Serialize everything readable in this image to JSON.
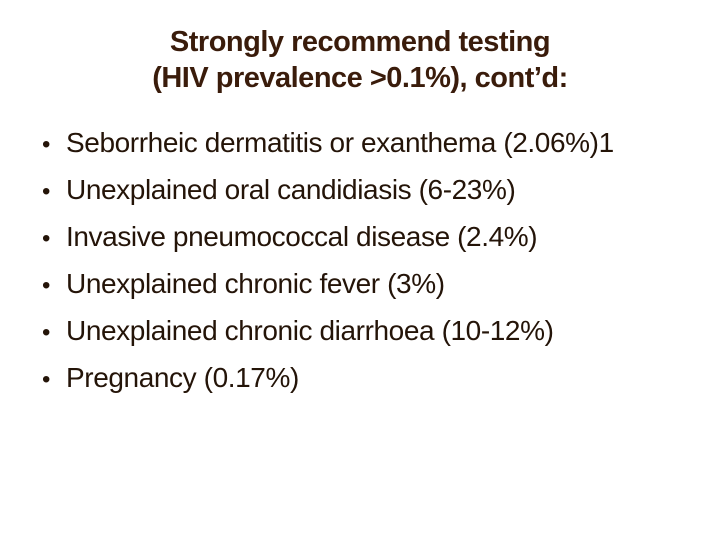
{
  "slide": {
    "title": {
      "line1": "Strongly recommend testing",
      "line2": "(HIV prevalence >0.1%), cont’d:"
    },
    "bullet_glyph": "•",
    "bullets": [
      "Seborrheic dermatitis or exanthema (2.06%)1",
      "Unexplained oral candidiasis (6-23%)",
      "Invasive pneumococcal disease (2.4%)",
      "Unexplained chronic fever (3%)",
      "Unexplained chronic diarrhoea (10-12%)",
      "Pregnancy (0.17%)"
    ],
    "colors": {
      "background": "#ffffff",
      "title_text": "#3a1c0b",
      "body_text": "#241408"
    }
  }
}
